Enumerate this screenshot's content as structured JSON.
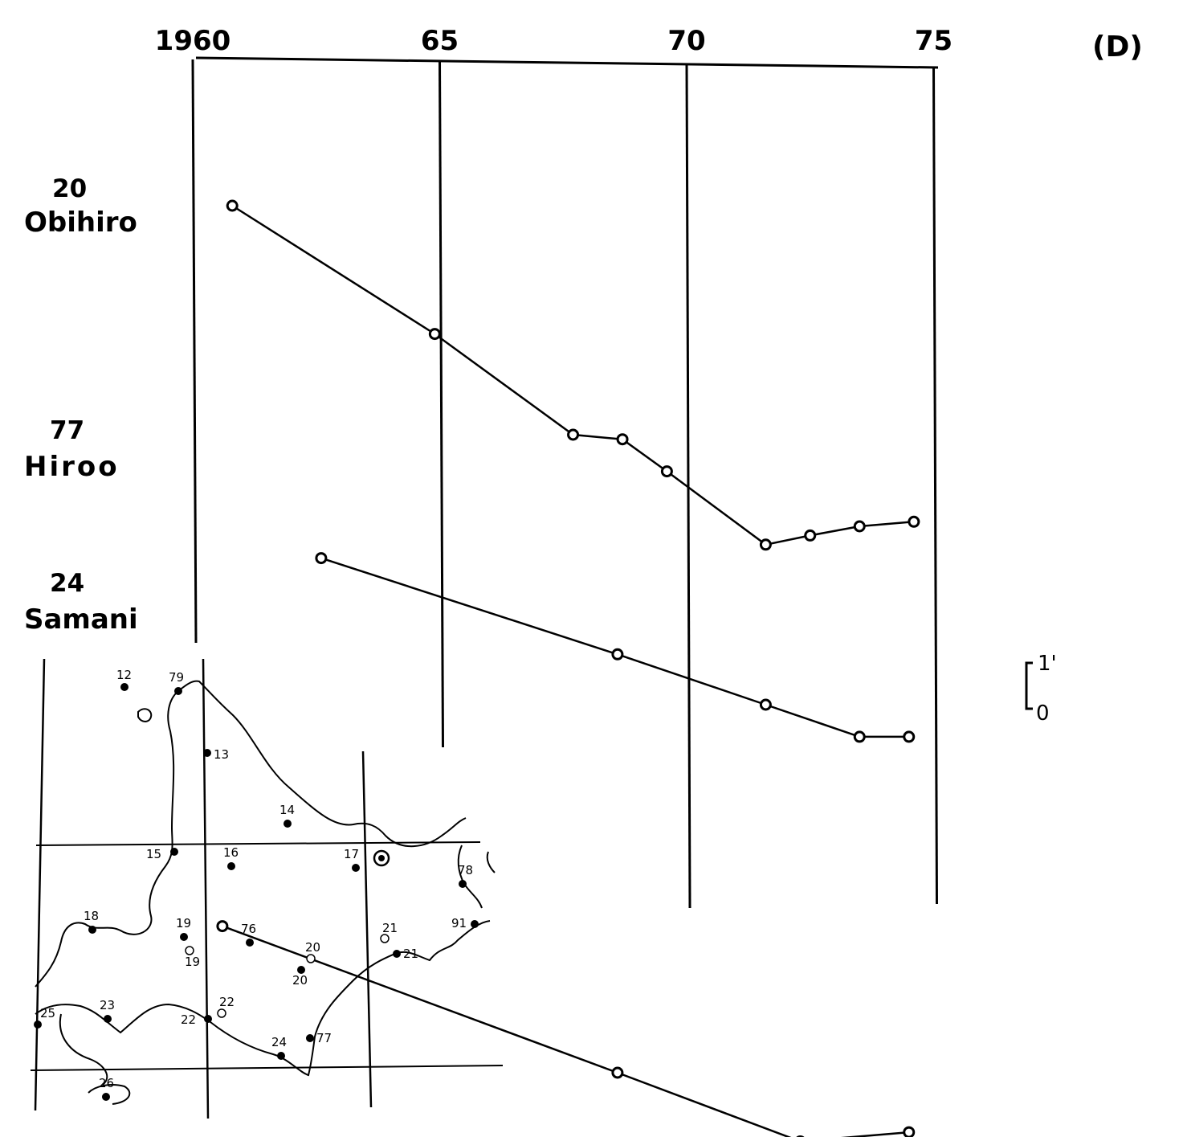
{
  "panel_label": "(D)",
  "scale_bar": {
    "top_label": "1'",
    "bottom_label": "0"
  },
  "chart_data": {
    "type": "line",
    "title": "",
    "xlabel": "",
    "ylabel": "",
    "x_ticks": [
      "1960",
      "65",
      "70",
      "75"
    ],
    "x_tick_values": [
      1960,
      1965,
      1970,
      1975
    ],
    "xlim": [
      1960,
      1975
    ],
    "y_unit": "arcmin offset per station (scale bar 1')",
    "grid": true,
    "series": [
      {
        "name": "Obihiro",
        "station_no": "20",
        "x": [
          1960.8,
          1964.9,
          1967.7,
          1968.7,
          1969.6,
          1971.6,
          1972.5,
          1973.5,
          1974.6
        ],
        "y": [
          7.0,
          4.2,
          2.0,
          1.9,
          1.2,
          -0.4,
          -0.2,
          0.0,
          0.1
        ]
      },
      {
        "name": "Hiroo",
        "station_no": "77",
        "x": [
          1962.6,
          1968.6,
          1971.6,
          1973.5,
          1974.5
        ],
        "y": [
          1.2,
          -0.9,
          -2.0,
          -2.7,
          -2.7
        ]
      },
      {
        "name": "Samani",
        "station_no": "24",
        "x": [
          1960.6,
          1968.6,
          1972.3,
          1974.5
        ],
        "y": [
          -1.8,
          -5.0,
          -6.5,
          -6.3
        ]
      }
    ]
  },
  "inset_map": {
    "stations": [
      {
        "id": "12",
        "type": "filled"
      },
      {
        "id": "79",
        "type": "filled"
      },
      {
        "id": "13",
        "type": "filled"
      },
      {
        "id": "14",
        "type": "filled"
      },
      {
        "id": "15",
        "type": "filled"
      },
      {
        "id": "16",
        "type": "filled"
      },
      {
        "id": "17",
        "type": "filled"
      },
      {
        "id": "78",
        "type": "filled"
      },
      {
        "id": "91",
        "type": "filled"
      },
      {
        "id": "18",
        "type": "filled"
      },
      {
        "id": "19",
        "type": "filled"
      },
      {
        "id": "19",
        "type": "open"
      },
      {
        "id": "76",
        "type": "filled"
      },
      {
        "id": "20",
        "type": "open"
      },
      {
        "id": "20",
        "type": "filled"
      },
      {
        "id": "21",
        "type": "open"
      },
      {
        "id": "21",
        "type": "filled"
      },
      {
        "id": "22",
        "type": "open"
      },
      {
        "id": "22",
        "type": "filled"
      },
      {
        "id": "23",
        "type": "filled"
      },
      {
        "id": "24",
        "type": "filled"
      },
      {
        "id": "77",
        "type": "filled"
      },
      {
        "id": "25",
        "type": "filled"
      },
      {
        "id": "26",
        "type": "filled"
      }
    ]
  }
}
